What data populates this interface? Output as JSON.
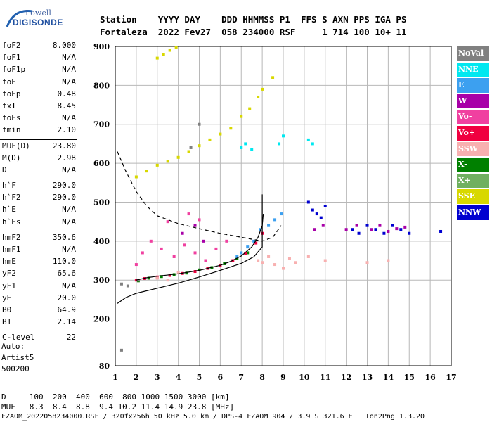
{
  "logo": {
    "line1": "Lowell",
    "line2": "DIGISONDE"
  },
  "header": {
    "row1": "Station    YYYY DAY    DDD HHMMSS P1  FFS S AXN PPS IGA PS",
    "row2": "Fortaleza  2022 Fev27  058 234000 RSF     1 714 100 10+ 11"
  },
  "params_groups": [
    [
      {
        "k": "foF2",
        "v": "8.000"
      },
      {
        "k": "foF1",
        "v": "N/A"
      },
      {
        "k": "foF1p",
        "v": "N/A"
      },
      {
        "k": "foE",
        "v": "N/A"
      },
      {
        "k": "foEp",
        "v": "0.48"
      },
      {
        "k": "fxI",
        "v": "8.45"
      },
      {
        "k": "foEs",
        "v": "N/A"
      },
      {
        "k": "fmin",
        "v": "2.10"
      }
    ],
    [
      {
        "k": "MUF(D)",
        "v": "23.80"
      },
      {
        "k": "M(D)",
        "v": "2.98"
      },
      {
        "k": "D",
        "v": "N/A"
      }
    ],
    [
      {
        "k": "h`F",
        "v": "290.0"
      },
      {
        "k": "h`F2",
        "v": "290.0"
      },
      {
        "k": "h`E",
        "v": "N/A"
      },
      {
        "k": "h`Es",
        "v": "N/A"
      }
    ],
    [
      {
        "k": "hmF2",
        "v": "350.6"
      },
      {
        "k": "hmF1",
        "v": "N/A"
      },
      {
        "k": "hmE",
        "v": "110.0"
      },
      {
        "k": "yF2",
        "v": "65.6"
      },
      {
        "k": "yF1",
        "v": "N/A"
      },
      {
        "k": "yE",
        "v": "20.0"
      },
      {
        "k": "B0",
        "v": "64.9"
      },
      {
        "k": "B1",
        "v": "2.14"
      }
    ],
    [
      {
        "k": "C-level",
        "v": "22"
      }
    ]
  ],
  "auto": {
    "line1": "Auto:",
    "line2": "Artist5",
    "line3": "500200"
  },
  "footer": {
    "d_row": "D     100  200  400  600  800 1000 1500 3000 [km]",
    "muf_row": "MUF   8.3  8.4  8.8  9.4 10.2 11.4 14.9 23.8 [MHz]",
    "file_row": "FZAOM_2022058234000.RSF / 320fx256h 50 kHz 5.0 km / DPS-4 FZAOM 904 / 3.9 S 321.6 E   Ion2Png 1.3.20"
  },
  "legend": [
    {
      "label": "NoVal",
      "color": "#808080"
    },
    {
      "label": "NNE",
      "color": "#00e8f0"
    },
    {
      "label": "E",
      "color": "#3ca0f0"
    },
    {
      "label": "W",
      "color": "#a800a8"
    },
    {
      "label": "Vo-",
      "color": "#f040a0"
    },
    {
      "label": "Vo+",
      "color": "#f00040"
    },
    {
      "label": "SSW",
      "color": "#f8b0b0"
    },
    {
      "label": "X-",
      "color": "#008000"
    },
    {
      "label": "X+",
      "color": "#70b060"
    },
    {
      "label": "SSE",
      "color": "#d8d800"
    },
    {
      "label": "NNW",
      "color": "#0000d0"
    }
  ],
  "chart_data": {
    "type": "scatter",
    "xlim": [
      1,
      17
    ],
    "ylim": [
      80,
      900
    ],
    "x_ticks": [
      1,
      2,
      3,
      4,
      5,
      6,
      7,
      8,
      9,
      10,
      11,
      12,
      13,
      14,
      15,
      16,
      17
    ],
    "y_ticks": [
      80,
      200,
      300,
      400,
      500,
      600,
      700,
      800,
      900
    ],
    "grid": true,
    "legend_position": "right",
    "lines": [
      {
        "name": "profile-solid",
        "color": "#000000",
        "style": "solid",
        "points": [
          [
            1.1,
            240
          ],
          [
            1.5,
            255
          ],
          [
            2,
            266
          ],
          [
            3,
            279
          ],
          [
            4,
            292
          ],
          [
            5,
            308
          ],
          [
            6,
            325
          ],
          [
            7,
            343
          ],
          [
            7.6,
            360
          ],
          [
            8,
            385
          ],
          [
            8.0,
            430
          ],
          [
            8.0,
            490
          ],
          [
            8.0,
            520
          ]
        ]
      },
      {
        "name": "profile-dashed",
        "color": "#000000",
        "style": "dashed",
        "points": [
          [
            1.1,
            630
          ],
          [
            1.5,
            580
          ],
          [
            2,
            527
          ],
          [
            2.5,
            490
          ],
          [
            3,
            465
          ],
          [
            4,
            445
          ],
          [
            5,
            432
          ],
          [
            6,
            420
          ],
          [
            7,
            410
          ],
          [
            8,
            400
          ],
          [
            8.5,
            410
          ],
          [
            8.9,
            440
          ]
        ]
      },
      {
        "name": "trace-ordinary",
        "color": "#000000",
        "style": "solid",
        "points": [
          [
            2.0,
            300
          ],
          [
            2.5,
            306
          ],
          [
            3,
            310
          ],
          [
            4,
            316
          ],
          [
            5,
            325
          ],
          [
            6,
            338
          ],
          [
            6.5,
            348
          ],
          [
            7,
            362
          ],
          [
            7.5,
            385
          ],
          [
            7.8,
            410
          ],
          [
            8.0,
            440
          ],
          [
            8.05,
            470
          ]
        ]
      }
    ],
    "traces": [
      {
        "name": "X- trace",
        "color": "#008000",
        "points": [
          [
            2.1,
            298
          ],
          [
            2.6,
            305
          ],
          [
            3.2,
            309
          ],
          [
            3.8,
            314
          ],
          [
            4.4,
            318
          ],
          [
            5.0,
            326
          ],
          [
            5.6,
            332
          ],
          [
            6.2,
            342
          ],
          [
            6.8,
            356
          ],
          [
            7.3,
            370
          ]
        ]
      },
      {
        "name": "Vo+ trace",
        "color": "#f00040",
        "points": [
          [
            2.0,
            300
          ],
          [
            2.4,
            304
          ],
          [
            3.0,
            308
          ],
          [
            3.6,
            312
          ],
          [
            4.2,
            317
          ],
          [
            4.8,
            322
          ],
          [
            5.4,
            330
          ],
          [
            6.0,
            338
          ],
          [
            6.6,
            350
          ],
          [
            7.2,
            368
          ],
          [
            7.7,
            395
          ],
          [
            8.0,
            420
          ]
        ]
      },
      {
        "name": "E trace",
        "color": "#3ca0f0",
        "points": [
          [
            6.8,
            360
          ],
          [
            7.0,
            370
          ],
          [
            7.3,
            385
          ],
          [
            7.6,
            400
          ],
          [
            7.9,
            430
          ],
          [
            8.3,
            440
          ],
          [
            8.6,
            455
          ],
          [
            8.9,
            470
          ]
        ]
      },
      {
        "name": "SSE upper",
        "color": "#d8d800",
        "points": [
          [
            2.0,
            565
          ],
          [
            2.5,
            580
          ],
          [
            3.0,
            595
          ],
          [
            3.5,
            605
          ],
          [
            4.0,
            615
          ],
          [
            4.5,
            630
          ],
          [
            5.0,
            645
          ],
          [
            5.5,
            660
          ],
          [
            6.0,
            675
          ],
          [
            6.5,
            690
          ]
        ]
      },
      {
        "name": "SSE top",
        "color": "#d8d800",
        "points": [
          [
            3.0,
            870
          ],
          [
            3.3,
            880
          ],
          [
            3.6,
            890
          ],
          [
            3.9,
            898
          ],
          [
            7.0,
            720
          ],
          [
            7.4,
            740
          ],
          [
            7.8,
            770
          ],
          [
            8.0,
            790
          ],
          [
            8.5,
            820
          ]
        ]
      },
      {
        "name": "NNW spread",
        "color": "#0000d0",
        "points": [
          [
            10.2,
            500
          ],
          [
            10.4,
            480
          ],
          [
            10.6,
            470
          ],
          [
            10.8,
            460
          ],
          [
            11.0,
            490
          ],
          [
            12.3,
            430
          ],
          [
            12.6,
            420
          ],
          [
            13.0,
            440
          ],
          [
            13.4,
            430
          ],
          [
            13.8,
            420
          ],
          [
            14.2,
            440
          ],
          [
            14.6,
            430
          ],
          [
            15.0,
            420
          ],
          [
            16.5,
            425
          ]
        ]
      },
      {
        "name": "W spread",
        "color": "#a800a8",
        "points": [
          [
            12.0,
            430
          ],
          [
            12.5,
            440
          ],
          [
            13.2,
            430
          ],
          [
            13.6,
            440
          ],
          [
            14.0,
            425
          ],
          [
            14.4,
            432
          ],
          [
            14.8,
            436
          ],
          [
            10.5,
            430
          ],
          [
            10.9,
            440
          ],
          [
            4.2,
            420
          ],
          [
            4.8,
            440
          ],
          [
            5.2,
            400
          ]
        ]
      },
      {
        "name": "NNE patches",
        "color": "#00e8f0",
        "points": [
          [
            7.0,
            640
          ],
          [
            7.2,
            650
          ],
          [
            7.5,
            635
          ],
          [
            8.8,
            650
          ],
          [
            9.0,
            670
          ],
          [
            10.2,
            660
          ],
          [
            10.4,
            650
          ]
        ]
      },
      {
        "name": "SSW spread",
        "color": "#f8b0b0",
        "points": [
          [
            7.8,
            350
          ],
          [
            8.0,
            345
          ],
          [
            8.3,
            360
          ],
          [
            8.6,
            340
          ],
          [
            9.0,
            330
          ],
          [
            9.3,
            355
          ],
          [
            9.6,
            345
          ],
          [
            10.2,
            360
          ],
          [
            11.0,
            350
          ],
          [
            13.0,
            345
          ],
          [
            14.0,
            350
          ],
          [
            3.0,
            305
          ],
          [
            3.5,
            300
          ],
          [
            4.0,
            320
          ]
        ]
      },
      {
        "name": "Vo- spread",
        "color": "#f040a0",
        "points": [
          [
            2.0,
            340
          ],
          [
            2.3,
            370
          ],
          [
            2.7,
            400
          ],
          [
            3.2,
            380
          ],
          [
            3.8,
            360
          ],
          [
            4.3,
            390
          ],
          [
            4.8,
            370
          ],
          [
            5.3,
            350
          ],
          [
            5.8,
            380
          ],
          [
            6.3,
            400
          ],
          [
            3.5,
            450
          ],
          [
            4.5,
            470
          ],
          [
            5.0,
            455
          ]
        ]
      },
      {
        "name": "NoVal",
        "color": "#808080",
        "points": [
          [
            1.3,
            290
          ],
          [
            1.6,
            285
          ],
          [
            1.3,
            120
          ],
          [
            5.0,
            700
          ],
          [
            4.6,
            640
          ],
          [
            2.1,
            300
          ]
        ]
      }
    ]
  }
}
